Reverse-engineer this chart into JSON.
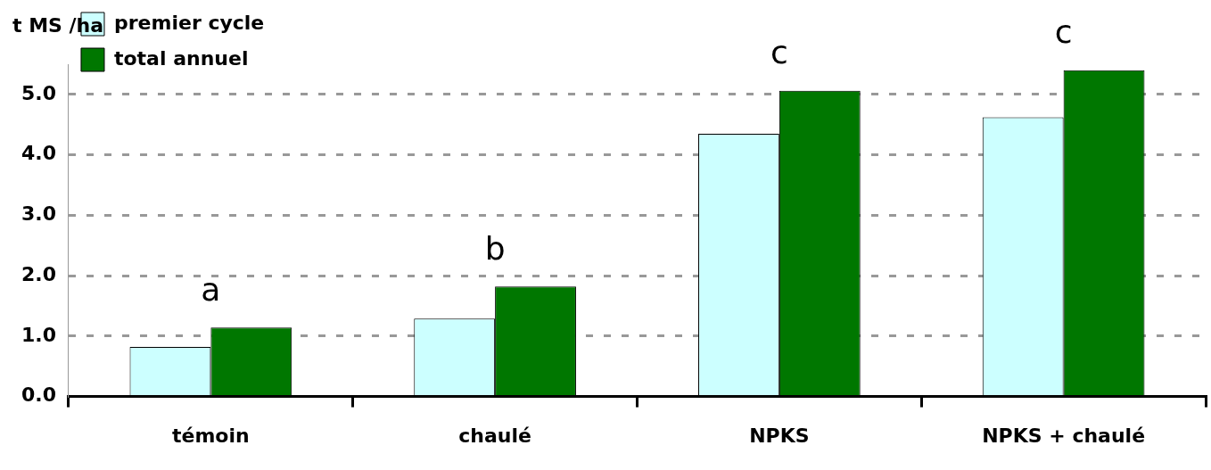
{
  "chart_data": {
    "type": "bar",
    "ylabel": "t MS /ha",
    "categories": [
      "témoin",
      "chaulé",
      "NPKS",
      "NPKS + chaulé"
    ],
    "series": [
      {
        "name": "premier cycle",
        "color": "#ccffff",
        "values": [
          0.82,
          1.29,
          4.35,
          4.62
        ]
      },
      {
        "name": "total annuel",
        "color": "#007700",
        "values": [
          1.14,
          1.82,
          5.06,
          5.4
        ]
      }
    ],
    "ylim": [
      0,
      5.5
    ],
    "yticks": [
      {
        "value": 0,
        "label": "0.0"
      },
      {
        "value": 1,
        "label": "1.0"
      },
      {
        "value": 2,
        "label": "2.0"
      },
      {
        "value": 3,
        "label": "3.0"
      },
      {
        "value": 4,
        "label": "4.0"
      },
      {
        "value": 5,
        "label": "5.0"
      }
    ],
    "grid": "y",
    "legend": "top left",
    "annotations": [
      "a",
      "b",
      "c",
      "c"
    ]
  }
}
